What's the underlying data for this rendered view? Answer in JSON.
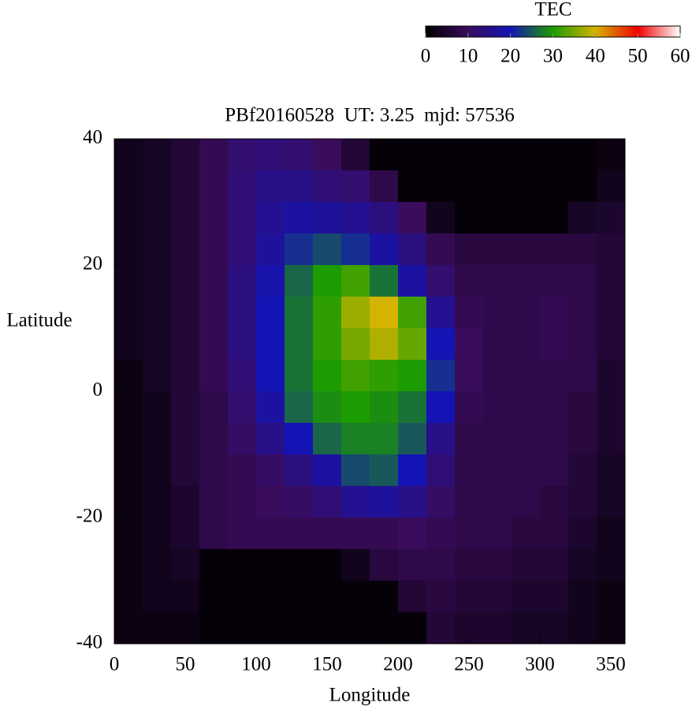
{
  "chart_data": {
    "type": "heatmap",
    "title": "PBf20160528  UT: 3.25  mjd: 57536",
    "x_label": "Longitude",
    "y_label": "Latitude",
    "colorbar_label": "TEC",
    "x": [
      10,
      30,
      50,
      70,
      90,
      110,
      130,
      150,
      170,
      190,
      210,
      230,
      250,
      270,
      290,
      310,
      330,
      350
    ],
    "y": [
      37.5,
      32.5,
      27.5,
      22.5,
      17.5,
      12.5,
      7.5,
      2.5,
      -2.5,
      -7.5,
      -12.5,
      -17.5,
      -22.5,
      -27.5,
      -32.5,
      -37.5
    ],
    "z": [
      [
        3,
        4,
        6,
        9,
        12,
        13,
        12,
        10,
        6,
        1,
        1,
        1,
        1,
        1,
        1,
        1,
        1,
        2
      ],
      [
        3,
        4,
        6,
        9,
        13,
        15,
        15,
        13,
        12,
        8,
        1,
        1,
        1,
        1,
        1,
        1,
        1,
        3
      ],
      [
        3,
        4,
        6,
        9,
        13,
        16,
        18,
        17,
        16,
        14,
        10,
        3,
        1,
        1,
        1,
        1,
        4,
        5
      ],
      [
        3,
        4,
        6,
        9,
        13,
        17,
        22,
        24,
        22,
        18,
        14,
        9,
        7,
        7,
        7,
        7,
        7,
        6
      ],
      [
        3,
        4,
        6,
        9,
        14,
        19,
        26,
        30,
        32,
        27,
        18,
        12,
        8,
        8,
        8,
        8,
        8,
        6
      ],
      [
        3,
        4,
        6,
        9,
        14,
        20,
        27,
        31,
        37,
        40,
        32,
        16,
        9,
        8,
        8,
        9,
        8,
        6
      ],
      [
        3,
        4,
        6,
        9,
        14,
        20,
        27,
        31,
        35,
        38,
        34,
        20,
        10,
        8,
        8,
        9,
        8,
        6
      ],
      [
        2,
        4,
        6,
        9,
        13,
        20,
        27,
        30,
        32,
        31,
        30,
        22,
        10,
        8,
        8,
        8,
        8,
        5
      ],
      [
        2,
        3,
        6,
        8,
        12,
        18,
        26,
        29,
        30,
        29,
        27,
        20,
        9,
        8,
        8,
        8,
        7,
        5
      ],
      [
        2,
        3,
        6,
        8,
        11,
        15,
        20,
        26,
        28,
        28,
        25,
        15,
        8,
        8,
        8,
        8,
        7,
        5
      ],
      [
        2,
        3,
        6,
        8,
        9,
        11,
        14,
        18,
        24,
        25,
        20,
        13,
        8,
        8,
        8,
        8,
        6,
        4
      ],
      [
        2,
        3,
        5,
        8,
        9,
        10,
        11,
        13,
        16,
        17,
        15,
        11,
        8,
        8,
        8,
        7,
        6,
        4
      ],
      [
        2,
        3,
        5,
        8,
        9,
        9,
        9,
        9,
        9,
        9,
        10,
        9,
        8,
        8,
        7,
        7,
        5,
        3
      ],
      [
        2,
        3,
        4,
        1,
        1,
        1,
        1,
        1,
        3,
        7,
        8,
        8,
        7,
        7,
        6,
        6,
        4,
        3
      ],
      [
        2,
        3,
        3,
        1,
        1,
        1,
        1,
        1,
        1,
        1,
        6,
        7,
        6,
        6,
        5,
        5,
        3,
        2
      ],
      [
        2,
        2,
        2,
        1,
        1,
        1,
        1,
        1,
        1,
        1,
        1,
        6,
        5,
        5,
        4,
        4,
        3,
        2
      ]
    ],
    "xlim": [
      0,
      360
    ],
    "xticks": [
      0,
      50,
      100,
      150,
      200,
      250,
      300,
      350
    ],
    "ylim": [
      -40,
      40
    ],
    "yticks": [
      -40,
      -20,
      0,
      20,
      40
    ],
    "zlim": [
      0,
      60
    ],
    "zticks": [
      0,
      10,
      20,
      30,
      40,
      50,
      60
    ],
    "colors": [
      "#000000",
      "#3a0c5c",
      "#1414b4",
      "#1c9c00",
      "#d4b400",
      "#f00000",
      "#ffffff"
    ]
  }
}
